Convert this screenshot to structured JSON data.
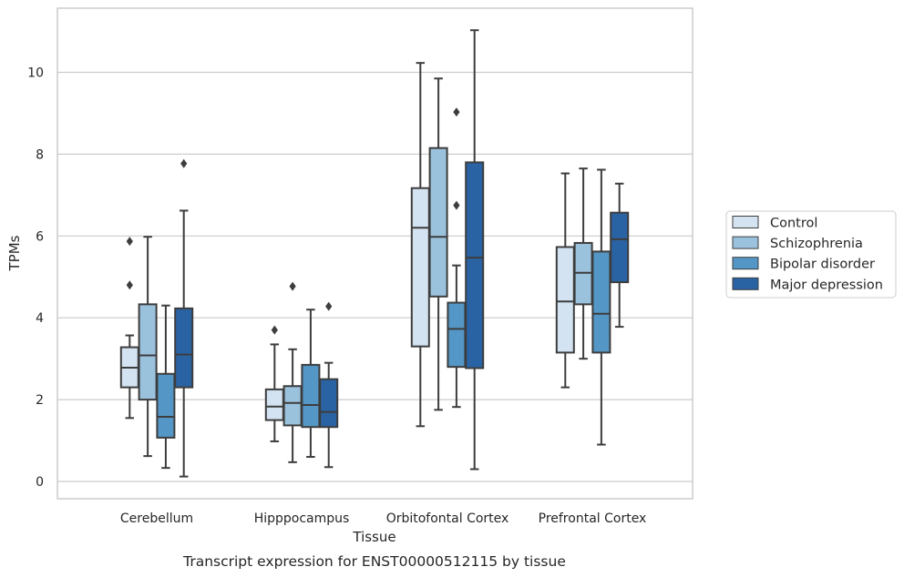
{
  "chart_data": {
    "type": "boxplot",
    "xlabel": "Tissue",
    "ylabel": "TPMs",
    "caption": "Transcript expression for ENST00000512115 by tissue",
    "ylim": [
      -0.4,
      11.6
    ],
    "yticks": [
      "0",
      "2",
      "4",
      "6",
      "8",
      "10"
    ],
    "categories": [
      "Cerebellum",
      "Hipppocampus",
      "Orbitofontal Cortex",
      "Prefrontal Cortex"
    ],
    "grid": "horizontal",
    "legend_position": "right",
    "series": [
      {
        "name": "Control",
        "color": "#d3e3f2",
        "boxes": [
          {
            "whislo": 1.55,
            "q1": 2.3,
            "med": 2.78,
            "q3": 3.28,
            "whishi": 3.57,
            "fliers": [
              4.8,
              5.87
            ]
          },
          {
            "whislo": 0.98,
            "q1": 1.5,
            "med": 1.83,
            "q3": 2.25,
            "whishi": 3.35,
            "fliers": [
              3.7
            ]
          },
          {
            "whislo": 1.35,
            "q1": 3.3,
            "med": 6.2,
            "q3": 7.17,
            "whishi": 10.23,
            "fliers": []
          },
          {
            "whislo": 2.3,
            "q1": 3.15,
            "med": 4.4,
            "q3": 5.73,
            "whishi": 7.53,
            "fliers": []
          }
        ]
      },
      {
        "name": "Schizophrenia",
        "color": "#9bc2dd",
        "boxes": [
          {
            "whislo": 0.62,
            "q1": 2.0,
            "med": 3.08,
            "q3": 4.33,
            "whishi": 5.98,
            "fliers": []
          },
          {
            "whislo": 0.47,
            "q1": 1.37,
            "med": 1.92,
            "q3": 2.33,
            "whishi": 3.23,
            "fliers": [
              4.77
            ]
          },
          {
            "whislo": 1.75,
            "q1": 4.52,
            "med": 5.98,
            "q3": 8.15,
            "whishi": 9.85,
            "fliers": []
          },
          {
            "whislo": 3.0,
            "q1": 4.33,
            "med": 5.1,
            "q3": 5.83,
            "whishi": 7.65,
            "fliers": []
          }
        ]
      },
      {
        "name": "Bipolar disorder",
        "color": "#5496c5",
        "boxes": [
          {
            "whislo": 0.33,
            "q1": 1.07,
            "med": 1.58,
            "q3": 2.63,
            "whishi": 4.3,
            "fliers": []
          },
          {
            "whislo": 0.6,
            "q1": 1.33,
            "med": 1.87,
            "q3": 2.85,
            "whishi": 4.2,
            "fliers": []
          },
          {
            "whislo": 1.82,
            "q1": 2.8,
            "med": 3.73,
            "q3": 4.37,
            "whishi": 5.28,
            "fliers": [
              6.75,
              9.03
            ]
          },
          {
            "whislo": 0.9,
            "q1": 3.15,
            "med": 4.1,
            "q3": 5.62,
            "whishi": 7.62,
            "fliers": []
          }
        ]
      },
      {
        "name": "Major depression",
        "color": "#2a63a3",
        "boxes": [
          {
            "whislo": 0.12,
            "q1": 2.3,
            "med": 3.1,
            "q3": 4.23,
            "whishi": 6.62,
            "fliers": [
              7.77
            ]
          },
          {
            "whislo": 0.35,
            "q1": 1.33,
            "med": 1.7,
            "q3": 2.5,
            "whishi": 2.9,
            "fliers": [
              4.28
            ]
          },
          {
            "whislo": 0.3,
            "q1": 2.77,
            "med": 5.47,
            "q3": 7.8,
            "whishi": 11.03,
            "fliers": []
          },
          {
            "whislo": 3.78,
            "q1": 4.87,
            "med": 5.92,
            "q3": 6.57,
            "whishi": 7.28,
            "fliers": []
          }
        ]
      }
    ]
  }
}
